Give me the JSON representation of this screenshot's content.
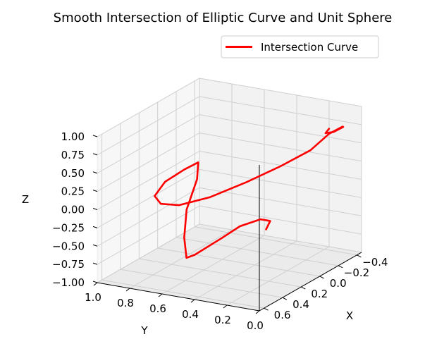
{
  "chart_data": {
    "type": "line3d",
    "title": "Smooth Intersection of Elliptic Curve and Unit Sphere",
    "xlabel": "X",
    "ylabel": "Y",
    "zlabel": "Z",
    "xlim": [
      -0.45,
      0.65
    ],
    "ylim": [
      0.0,
      1.0
    ],
    "zlim": [
      -1.0,
      1.0
    ],
    "x_ticks": [
      -0.4,
      -0.2,
      0.0,
      0.2,
      0.4,
      0.6
    ],
    "x_tick_labels": [
      "−0.4",
      "−0.2",
      "0.0",
      "0.2",
      "0.4",
      "0.6"
    ],
    "y_ticks": [
      0.0,
      0.2,
      0.4,
      0.6,
      0.8,
      1.0
    ],
    "y_tick_labels": [
      "0.0",
      "0.2",
      "0.4",
      "0.6",
      "0.8",
      "1.0"
    ],
    "z_ticks": [
      1.0,
      0.75,
      0.5,
      0.25,
      0.0,
      -0.25,
      -0.5,
      -0.75,
      -1.0
    ],
    "z_tick_labels": [
      "1.00",
      "0.75",
      "0.50",
      "0.25",
      "0.00",
      "−0.25",
      "−0.50",
      "−0.75",
      "−1.00"
    ],
    "grid": true,
    "legend_position": "top-right",
    "series": [
      {
        "name": "Intersection Curve",
        "color": "#ff0000",
        "points": [
          [
            -0.1,
            0.0,
            0.95
          ],
          [
            -0.08,
            0.01,
            0.9
          ],
          [
            -0.2,
            0.03,
            0.82
          ],
          [
            -0.34,
            0.05,
            0.78
          ],
          [
            -0.28,
            0.02,
            0.84
          ],
          [
            -0.1,
            0.0,
            0.88
          ],
          [
            0.1,
            0.0,
            0.8
          ],
          [
            0.25,
            0.1,
            0.65
          ],
          [
            0.35,
            0.25,
            0.45
          ],
          [
            0.4,
            0.45,
            0.2
          ],
          [
            0.38,
            0.65,
            0.0
          ],
          [
            0.28,
            0.82,
            -0.12
          ],
          [
            0.12,
            0.95,
            -0.18
          ],
          [
            -0.08,
            1.0,
            -0.15
          ],
          [
            -0.25,
            0.98,
            -0.1
          ],
          [
            -0.35,
            0.95,
            -0.06
          ],
          [
            -0.25,
            0.9,
            -0.2
          ],
          [
            -0.05,
            0.85,
            -0.45
          ],
          [
            0.15,
            0.75,
            -0.65
          ],
          [
            0.3,
            0.65,
            -0.78
          ],
          [
            0.3,
            0.6,
            -0.72
          ],
          [
            0.1,
            0.55,
            -0.62
          ],
          [
            -0.1,
            0.55,
            -0.6
          ],
          [
            -0.2,
            0.48,
            -0.55
          ],
          [
            -0.2,
            0.42,
            -0.55
          ],
          [
            -0.12,
            0.4,
            -0.6
          ]
        ]
      }
    ]
  }
}
